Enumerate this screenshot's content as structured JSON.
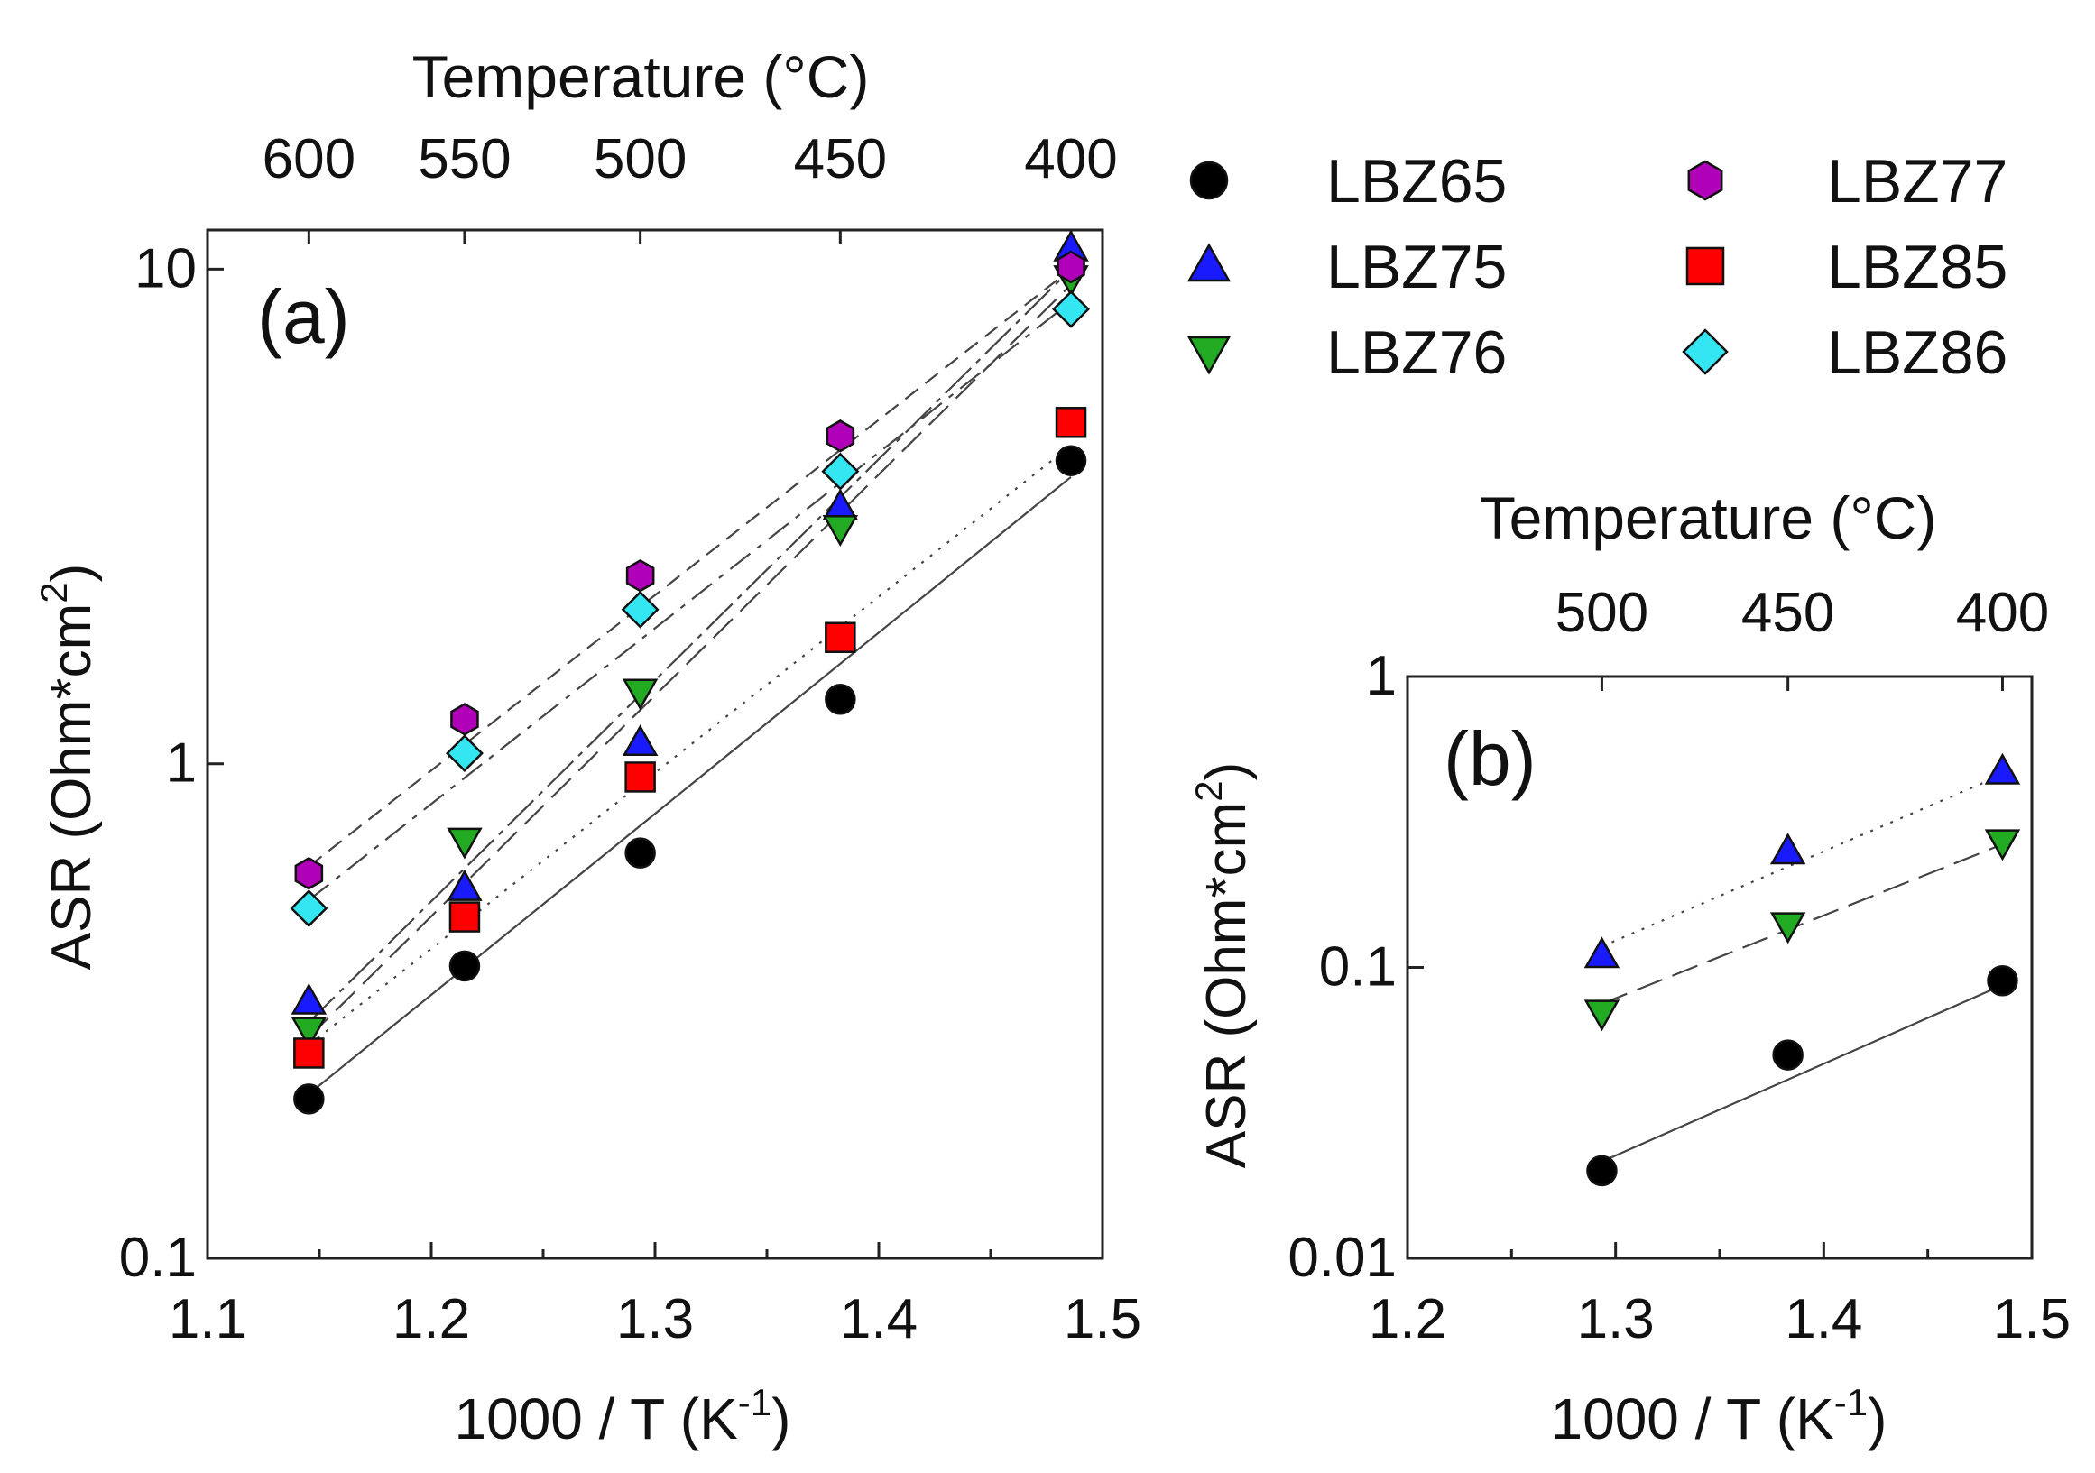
{
  "legend": [
    {
      "name": "LBZ65",
      "marker": "circle",
      "color": "#000000"
    },
    {
      "name": "LBZ75",
      "marker": "triangle-up",
      "color": "#1a1aff"
    },
    {
      "name": "LBZ76",
      "marker": "triangle-down",
      "color": "#22aa22"
    },
    {
      "name": "LBZ77",
      "marker": "hexagon",
      "color": "#b000b8"
    },
    {
      "name": "LBZ85",
      "marker": "square",
      "color": "#ff0000"
    },
    {
      "name": "LBZ86",
      "marker": "diamond",
      "color": "#33e6f2"
    }
  ],
  "chart_data": [
    {
      "type": "scatter",
      "panel_label": "(a)",
      "title": "",
      "xlabel": "1000 / T (K",
      "xlabel_sup": "-1",
      "xlabel_end": ")",
      "ylabel": "ASR (Ohm*cm",
      "ylabel_sup": "2",
      "ylabel_end": ")",
      "x2label": "Temperature (°C)",
      "xlim": [
        1.1,
        1.5
      ],
      "ylim": [
        0.1,
        12
      ],
      "yscale": "log",
      "xticks": [
        1.1,
        1.2,
        1.3,
        1.4,
        1.5
      ],
      "xtick_labels": [
        "1.1",
        "1.2",
        "1.3",
        "1.4",
        "1.5"
      ],
      "yticks": [
        0.1,
        1,
        10
      ],
      "ytick_labels": [
        "0.1",
        "1",
        "10"
      ],
      "top_ticks": [
        {
          "label": "600",
          "x": 1.1453
        },
        {
          "label": "550",
          "x": 1.2149
        },
        {
          "label": "500",
          "x": 1.2934
        },
        {
          "label": "450",
          "x": 1.3828
        },
        {
          "label": "400",
          "x": 1.4859
        }
      ],
      "series": [
        {
          "name": "LBZ65",
          "x": [
            1.1453,
            1.2149,
            1.2934,
            1.3828,
            1.4859
          ],
          "y": [
            0.21,
            0.39,
            0.66,
            1.35,
            4.1
          ],
          "fit": [
            [
              1.1453,
              0.215
            ],
            [
              1.4859,
              3.8
            ]
          ],
          "dash": ""
        },
        {
          "name": "LBZ75",
          "x": [
            1.1453,
            1.2149,
            1.2934,
            1.3828,
            1.4859
          ],
          "y": [
            0.33,
            0.56,
            1.1,
            3.3,
            11.0
          ],
          "fit": [
            [
              1.1453,
              0.3
            ],
            [
              1.4859,
              10.0
            ]
          ],
          "dash": "40,8,6,8"
        },
        {
          "name": "LBZ76",
          "x": [
            1.1453,
            1.2149,
            1.2934,
            1.3828,
            1.4859
          ],
          "y": [
            0.29,
            0.7,
            1.4,
            3.0,
            9.6
          ],
          "fit": [
            [
              1.1453,
              0.28
            ],
            [
              1.4859,
              9.3
            ]
          ],
          "dash": "30,12"
        },
        {
          "name": "LBZ77",
          "x": [
            1.1453,
            1.2149,
            1.2934,
            1.3828,
            1.4859
          ],
          "y": [
            0.6,
            1.23,
            2.4,
            4.6,
            10.1
          ],
          "fit": [
            [
              1.1453,
              0.62
            ],
            [
              1.4859,
              10.0
            ]
          ],
          "dash": "18,10"
        },
        {
          "name": "LBZ85",
          "x": [
            1.1453,
            1.2149,
            1.2934,
            1.3828,
            1.4859
          ],
          "y": [
            0.26,
            0.49,
            0.94,
            1.8,
            4.9
          ],
          "fit": [
            [
              1.1453,
              0.27
            ],
            [
              1.4859,
              4.4
            ]
          ],
          "dash": "3,9"
        },
        {
          "name": "LBZ86",
          "x": [
            1.1453,
            1.2149,
            1.2934,
            1.3828,
            1.4859
          ],
          "y": [
            0.51,
            1.05,
            2.05,
            3.9,
            8.3
          ],
          "fit": [
            [
              1.1453,
              0.53
            ],
            [
              1.4859,
              8.6
            ]
          ],
          "dash": "28,10,6,10"
        }
      ]
    },
    {
      "type": "scatter",
      "panel_label": "(b)",
      "title": "",
      "xlabel": "1000 / T (K",
      "xlabel_sup": "-1",
      "xlabel_end": ")",
      "ylabel": "ASR (Ohm*cm",
      "ylabel_sup": "2",
      "ylabel_end": ")",
      "x2label": "Temperature (°C)",
      "xlim": [
        1.2,
        1.5
      ],
      "ylim": [
        0.01,
        1
      ],
      "yscale": "log",
      "xticks": [
        1.2,
        1.3,
        1.4,
        1.5
      ],
      "xtick_labels": [
        "1.2",
        "1.3",
        "1.4",
        "1.5"
      ],
      "yticks": [
        0.01,
        0.1,
        1
      ],
      "ytick_labels": [
        "0.01",
        "0.1",
        "1"
      ],
      "top_ticks": [
        {
          "label": "500",
          "x": 1.2934
        },
        {
          "label": "450",
          "x": 1.3828
        },
        {
          "label": "400",
          "x": 1.4859
        }
      ],
      "series": [
        {
          "name": "LBZ65",
          "x": [
            1.2934,
            1.3828,
            1.4859
          ],
          "y": [
            0.02,
            0.05,
            0.09
          ],
          "fit": [
            [
              1.2934,
              0.0215
            ],
            [
              1.4859,
              0.087
            ]
          ],
          "dash": ""
        },
        {
          "name": "LBZ75",
          "x": [
            1.2934,
            1.3828,
            1.4859
          ],
          "y": [
            0.11,
            0.25,
            0.47
          ],
          "fit": [
            [
              1.2934,
              0.118
            ],
            [
              1.4859,
              0.46
            ]
          ],
          "dash": "3,9"
        },
        {
          "name": "LBZ76",
          "x": [
            1.2934,
            1.3828,
            1.4859
          ],
          "y": [
            0.07,
            0.14,
            0.27
          ],
          "fit": [
            [
              1.2934,
              0.075
            ],
            [
              1.4859,
              0.265
            ]
          ],
          "dash": "30,12"
        }
      ]
    }
  ]
}
